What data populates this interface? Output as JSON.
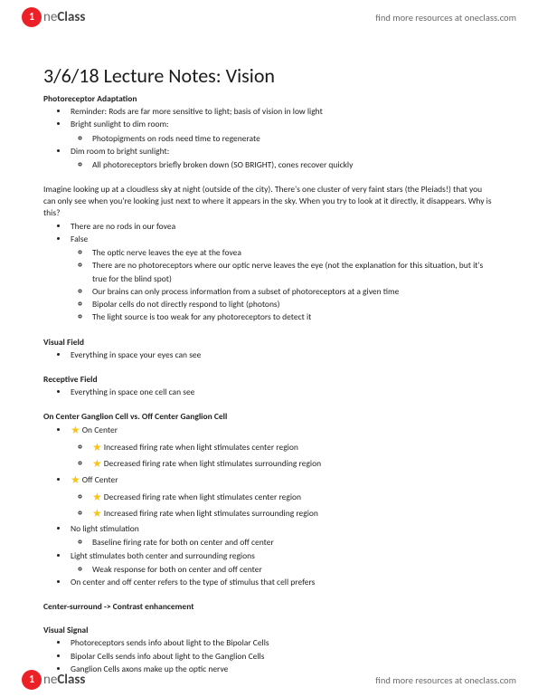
{
  "brand": {
    "circle_glyph": "1",
    "name_light": "ne",
    "name_bold": "Class",
    "tagline": "find more resources at oneclass.com",
    "circle_bg": "#ec2127",
    "circle_fg": "#ffffff"
  },
  "title": "3/6/18 Lecture Notes: Vision",
  "s1": {
    "heading": "Photoreceptor Adaptation",
    "b1": "Reminder: Rods are far more sensitive to light; basis of vision in low light",
    "b2": "Bright sunlight to dim room:",
    "b2a": "Photopigments on rods need time to regenerate",
    "b3": "Dim room to bright sunlight:",
    "b3a": "All photoreceptors briefly broken down (SO BRIGHT), cones recover quickly"
  },
  "para1": "Imagine looking up at a cloudless sky at night (outside of the city). There's one cluster of very faint stars (the Pleiads!) that you can only see when you're looking just next to where it appears in the sky. When you try to look at it directly, it disappears. Why is this?",
  "s2": {
    "a": "There are no rods in our fovea",
    "b": "False",
    "b1": "The optic nerve leaves the eye at the fovea",
    "b2": "There are no photoreceptors where our optic nerve leaves the eye (not the explanation for this situation, but it's true for the blind spot)",
    "b3": "Our brains can only process information from a subset of photoreceptors at a given time",
    "b4": "Bipolar cells do not directly respond to light (photons)",
    "b5": "The light source is too weak for any photoreceptors to detect it"
  },
  "vf": {
    "heading": "Visual Field",
    "b1": "Everything in space your eyes can see"
  },
  "rf": {
    "heading": "Receptive Field",
    "b1": "Everything in space one cell can see"
  },
  "gc": {
    "heading": "On Center Ganglion Cell vs. Off Center Ganglion Cell",
    "on": "On Center",
    "on1": "Increased firing rate when light stimulates center region",
    "on2": "Decreased firing rate when light stimulates surrounding region",
    "off": "Off Center",
    "off1": "Decreased firing rate when light stimulates center region",
    "off2": "Increased firing rate when light stimulates surrounding region",
    "nl": "No light stimulation",
    "nl1": "Baseline firing rate for both on center and off center",
    "both": "Light stimulates both center and surrounding regions",
    "both1": "Weak response for both on center and off center",
    "pref": "On center and off center refers to the type of stimulus that cell prefers"
  },
  "cs": "Center-surround -> Contrast enhancement",
  "vs": {
    "heading": "Visual Signal",
    "b1": "Photoreceptors sends info about light to the Bipolar Cells",
    "b2": "Bipolar Cells sends info about light to the Ganglion Cells",
    "b3": "Ganglion Cells axons make up the optic nerve"
  },
  "icons": {
    "star": "★"
  }
}
